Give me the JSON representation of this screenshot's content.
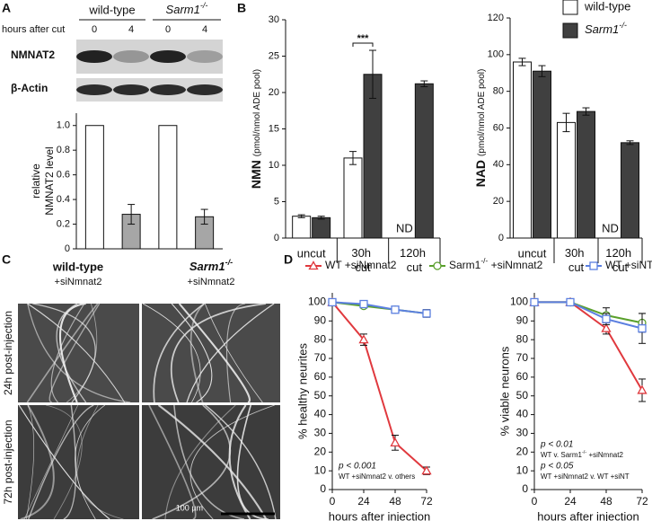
{
  "panel_labels": [
    "A",
    "B",
    "C",
    "D"
  ],
  "blot": {
    "groups": [
      "wild-type",
      "Sarm1-/-"
    ],
    "row_label": "hours after cut",
    "hours": [
      "0",
      "4",
      "0",
      "4"
    ],
    "bands": [
      "NMNAT2",
      "β-Actin"
    ]
  },
  "micrographs": {
    "columns": [
      {
        "title": "wild-type",
        "subtitle": "+siNmnat2"
      },
      {
        "title": "Sarm1-/-",
        "subtitle": "+siNmnat2"
      }
    ],
    "rows": [
      "24h post-injection",
      "72h post-injection"
    ],
    "scale_bar": "100 µm"
  },
  "chart_data": [
    {
      "type": "bar",
      "ylabel": [
        "relative",
        "NMNAT2 level"
      ],
      "values": [
        1,
        0.28,
        1,
        0.26
      ],
      "errors": [
        null,
        0.08,
        null,
        0.06
      ],
      "colors": [
        "#ffffff",
        "#a6a6a6",
        "#ffffff",
        "#a6a6a6"
      ],
      "ylim": [
        0,
        1.1
      ],
      "yticks": [
        0,
        0.2,
        0.4,
        0.6,
        0.8,
        {
          "value": 1,
          "label": "1.0"
        }
      ]
    },
    {
      "type": "bar",
      "ylabel": "NMN",
      "ylabel_unit": "(pmol/nmol ADE pool)",
      "categories": [
        "uncut",
        "30h cut",
        "120h cut"
      ],
      "series": [
        {
          "color": "#ffffff",
          "values": [
            3.0,
            11.0,
            null
          ],
          "errors": [
            0.2,
            0.9,
            null
          ]
        },
        {
          "color": "#404040",
          "values": [
            2.8,
            22.5,
            21.2
          ],
          "errors": [
            0.2,
            3.3,
            0.4
          ]
        }
      ],
      "ylim": [
        0,
        30
      ],
      "yticks": [
        0,
        5,
        10,
        15,
        20,
        25,
        30
      ],
      "significance": "***",
      "missing_label": "ND"
    },
    {
      "type": "bar",
      "ylabel": "NAD",
      "ylabel_unit": "(pmol/nmol ADE pool)",
      "categories": [
        "uncut",
        "30h cut",
        "120h cut"
      ],
      "series": [
        {
          "name": "wild-type",
          "color": "#ffffff",
          "values": [
            96,
            63,
            null
          ],
          "errors": [
            2,
            5,
            null
          ]
        },
        {
          "name": "Sarm1-/-",
          "color": "#404040",
          "values": [
            91,
            69,
            52
          ],
          "errors": [
            3,
            2,
            1
          ]
        }
      ],
      "ylim": [
        0,
        120
      ],
      "yticks": [
        0,
        20,
        40,
        60,
        80,
        100,
        120
      ],
      "missing_label": "ND",
      "legend": "upper right"
    },
    {
      "type": "line",
      "ylabel": "% healthy neurites",
      "xlabel": "hours after injection",
      "x": [
        0,
        24,
        48,
        72
      ],
      "xlim": [
        0,
        72
      ],
      "xticks": [
        0,
        24,
        48,
        72
      ],
      "ylim": [
        0,
        105
      ],
      "yticks": [
        0,
        10,
        20,
        30,
        40,
        50,
        60,
        70,
        80,
        90,
        100
      ],
      "legend": "top",
      "series": [
        {
          "name": "WT +siNmnat2",
          "color": "#e0393e",
          "marker": "triangle",
          "values": [
            100,
            80,
            25,
            10
          ],
          "errors": [
            null,
            3,
            4,
            2
          ]
        },
        {
          "name": "Sarm1-/- +siNmnat2",
          "color": "#5aa02c",
          "marker": "circle",
          "values": [
            100,
            98,
            96,
            94
          ],
          "errors": [
            null,
            1,
            1,
            2
          ]
        },
        {
          "name": "WT +siNT",
          "color": "#5b7fe0",
          "marker": "square",
          "values": [
            100,
            99,
            96,
            94
          ],
          "errors": [
            null,
            1,
            1,
            2
          ]
        }
      ],
      "annotations": [
        "p < 0.001",
        "WT +siNmnat2 v. others"
      ]
    },
    {
      "type": "line",
      "ylabel": "% viable neurons",
      "xlabel": "hours after injection",
      "x": [
        0,
        24,
        48,
        72
      ],
      "xlim": [
        0,
        72
      ],
      "xticks": [
        0,
        24,
        48,
        72
      ],
      "ylim": [
        0,
        105
      ],
      "yticks": [
        0,
        10,
        20,
        30,
        40,
        50,
        60,
        70,
        80,
        90,
        100
      ],
      "series": [
        {
          "color": "#e0393e",
          "marker": "triangle",
          "values": [
            100,
            100,
            86,
            53
          ],
          "errors": [
            null,
            1,
            3,
            6
          ]
        },
        {
          "color": "#5aa02c",
          "marker": "circle",
          "values": [
            100,
            100,
            93,
            89
          ],
          "errors": [
            null,
            1,
            4,
            5
          ]
        },
        {
          "color": "#5b7fe0",
          "marker": "square",
          "values": [
            100,
            100,
            91,
            86
          ],
          "errors": [
            null,
            1,
            3,
            8
          ]
        }
      ],
      "annotations": [
        "p < 0.01",
        "WT v. Sarm1-/- +siNmnat2",
        "p < 0.05",
        "WT +siNmnat2 v. WT +siNT"
      ]
    }
  ]
}
